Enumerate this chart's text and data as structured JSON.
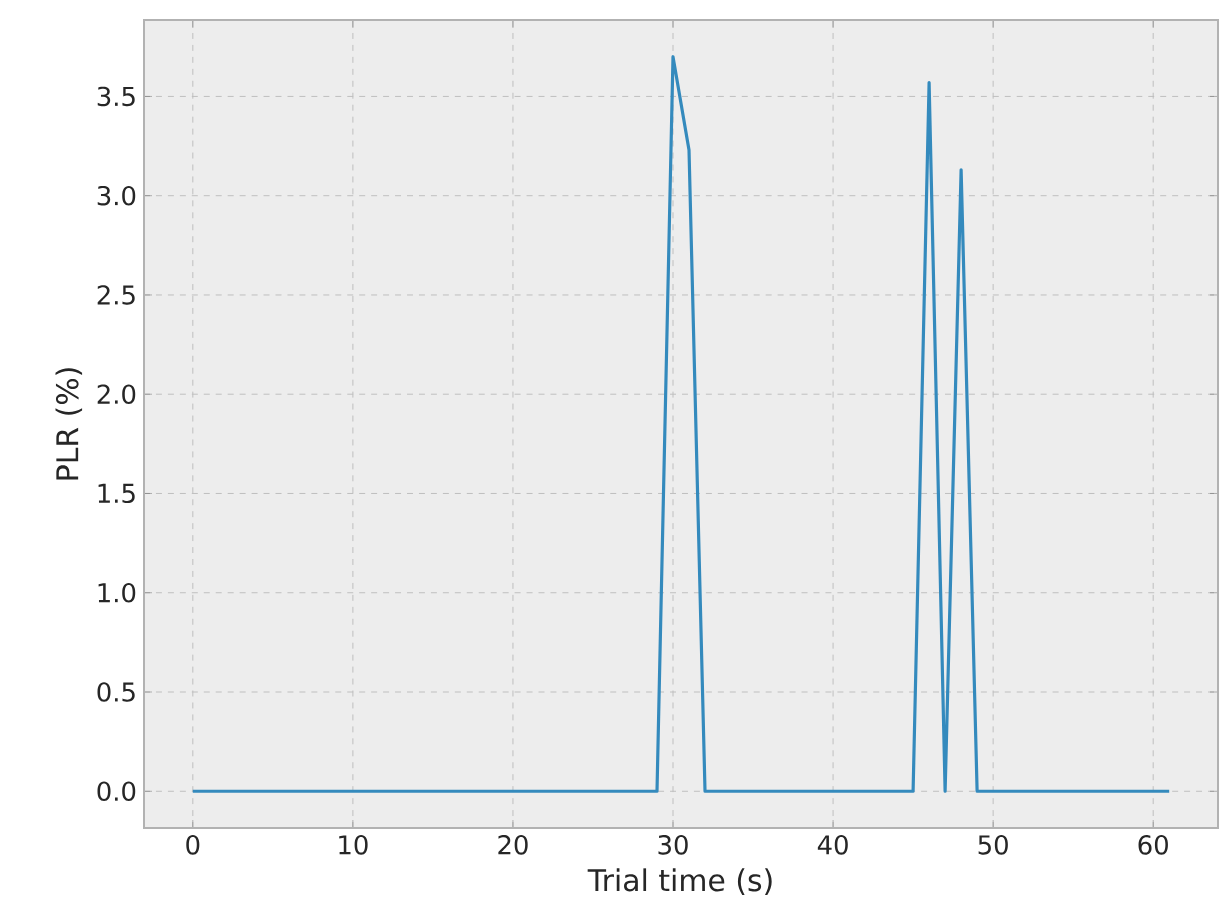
{
  "chart_data": {
    "type": "line",
    "xlabel": "Trial time (s)",
    "ylabel": "PLR (%)",
    "x": [
      0,
      29,
      30,
      31,
      32,
      45,
      46,
      47,
      48,
      49,
      61
    ],
    "series": [
      {
        "color": "#348abd",
        "values": [
          0,
          0,
          3.7,
          3.23,
          0,
          0,
          3.57,
          0,
          3.13,
          0,
          0
        ]
      }
    ],
    "xlim": [
      -3.05,
      64.05
    ],
    "ylim": [
      -0.185,
      3.885
    ],
    "xticks": [
      0,
      10,
      20,
      30,
      40,
      50,
      60
    ],
    "yticks": [
      {
        "value": 0,
        "label": "0.0"
      },
      {
        "value": 0.5,
        "label": "0.5"
      },
      {
        "value": 1,
        "label": "1.0"
      },
      {
        "value": 1.5,
        "label": "1.5"
      },
      {
        "value": 2,
        "label": "2.0"
      },
      {
        "value": 2.5,
        "label": "2.5"
      },
      {
        "value": 3,
        "label": "3.0"
      },
      {
        "value": 3.5,
        "label": "3.5"
      }
    ],
    "grid": true,
    "line_style": "solid",
    "marker": "none"
  }
}
